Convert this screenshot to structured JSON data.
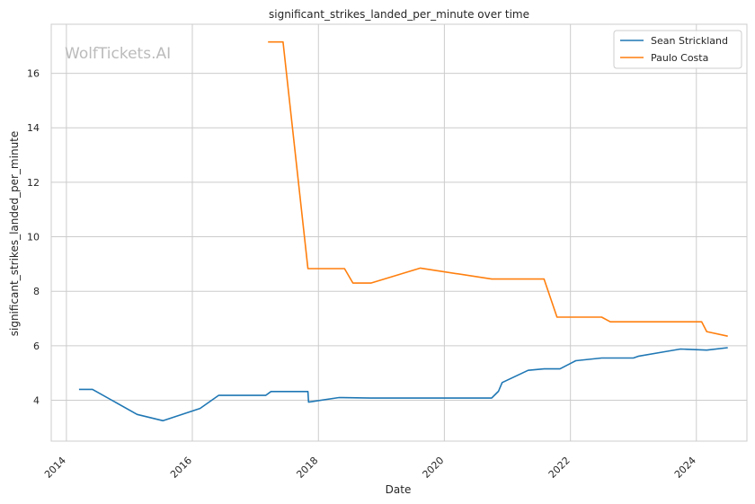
{
  "chart_data": {
    "type": "line",
    "title": "significant_strikes_landed_per_minute over time",
    "xlabel": "Date",
    "ylabel": "significant_strikes_landed_per_minute",
    "watermark": "WolfTickets.AI",
    "x_ticks": [
      "2014",
      "2016",
      "2018",
      "2020",
      "2022",
      "2024"
    ],
    "y_ticks": [
      "4",
      "6",
      "8",
      "10",
      "12",
      "14",
      "16"
    ],
    "xlim": [
      "2013-10-05",
      "2024-10-20"
    ],
    "ylim": [
      2.5,
      17.8
    ],
    "grid": true,
    "legend_position": "top-right",
    "series": [
      {
        "name": "Sean Strickland",
        "color": "#1f77b4",
        "points": [
          [
            "2014-03-15",
            4.4
          ],
          [
            "2014-06-01",
            4.4
          ],
          [
            "2015-02-15",
            3.48
          ],
          [
            "2015-07-15",
            3.25
          ],
          [
            "2016-02-15",
            3.7
          ],
          [
            "2016-06-01",
            4.18
          ],
          [
            "2017-03-01",
            4.18
          ],
          [
            "2017-04-01",
            4.32
          ],
          [
            "2017-11-01",
            4.32
          ],
          [
            "2017-11-05",
            3.93
          ],
          [
            "2018-05-01",
            4.1
          ],
          [
            "2018-11-01",
            4.08
          ],
          [
            "2020-10-01",
            4.08
          ],
          [
            "2020-11-10",
            4.33
          ],
          [
            "2020-12-01",
            4.65
          ],
          [
            "2021-05-01",
            5.1
          ],
          [
            "2021-08-01",
            5.15
          ],
          [
            "2021-11-01",
            5.15
          ],
          [
            "2022-02-01",
            5.45
          ],
          [
            "2022-07-01",
            5.55
          ],
          [
            "2023-01-01",
            5.55
          ],
          [
            "2023-02-01",
            5.62
          ],
          [
            "2023-07-01",
            5.78
          ],
          [
            "2023-10-01",
            5.88
          ],
          [
            "2024-03-01",
            5.84
          ],
          [
            "2024-07-01",
            5.93
          ]
        ]
      },
      {
        "name": "Paulo Costa",
        "color": "#ff7f0e",
        "points": [
          [
            "2017-03-15",
            17.15
          ],
          [
            "2017-06-10",
            17.15
          ],
          [
            "2017-11-01",
            8.83
          ],
          [
            "2018-06-01",
            8.83
          ],
          [
            "2018-07-20",
            8.3
          ],
          [
            "2018-11-01",
            8.3
          ],
          [
            "2019-08-15",
            8.85
          ],
          [
            "2020-10-01",
            8.45
          ],
          [
            "2021-08-01",
            8.45
          ],
          [
            "2021-10-15",
            7.05
          ],
          [
            "2022-07-01",
            7.05
          ],
          [
            "2022-08-20",
            6.88
          ],
          [
            "2024-02-01",
            6.88
          ],
          [
            "2024-03-01",
            6.52
          ],
          [
            "2024-07-01",
            6.35
          ]
        ]
      }
    ]
  }
}
